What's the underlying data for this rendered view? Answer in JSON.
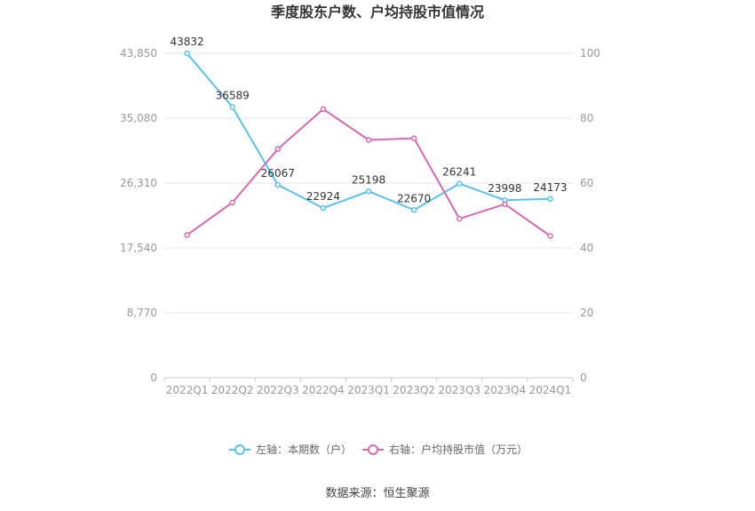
{
  "source": "数据来源：恒生聚源",
  "chart_data": {
    "type": "line",
    "title": "季度股东户数、户均持股市值情况",
    "categories": [
      "2022Q1",
      "2022Q2",
      "2022Q3",
      "2022Q4",
      "2023Q1",
      "2023Q2",
      "2023Q3",
      "2023Q4",
      "2024Q1"
    ],
    "series": [
      {
        "name": "左轴：本期数（户）",
        "axis": "left",
        "color": "#5bc0eb",
        "values": [
          43832,
          36589,
          26067,
          22924,
          25198,
          22670,
          26241,
          23998,
          24173
        ],
        "data_labels": [
          "43832",
          "36589",
          "26067",
          "22924",
          "25198",
          "22670",
          "26241",
          "23998",
          "24173"
        ]
      },
      {
        "name": "右轴：户均持股市值（万元）",
        "axis": "right",
        "color": "#d46aae",
        "values": [
          44,
          54,
          70.5,
          82.8,
          73.3,
          73.8,
          49,
          53.5,
          43.7
        ]
      }
    ],
    "y_left": {
      "min": 0,
      "max": 43850,
      "ticks": [
        0,
        8770,
        17540,
        26310,
        35080,
        43850
      ],
      "tick_labels": [
        "0",
        "8,770",
        "17,540",
        "26,310",
        "35,080",
        "43,850"
      ]
    },
    "y_right": {
      "min": 0,
      "max": 100,
      "ticks": [
        0,
        20,
        40,
        60,
        80,
        100
      ],
      "tick_labels": [
        "0",
        "20",
        "40",
        "60",
        "80",
        "100"
      ]
    },
    "grid": true,
    "legend_position": "bottom-center"
  }
}
